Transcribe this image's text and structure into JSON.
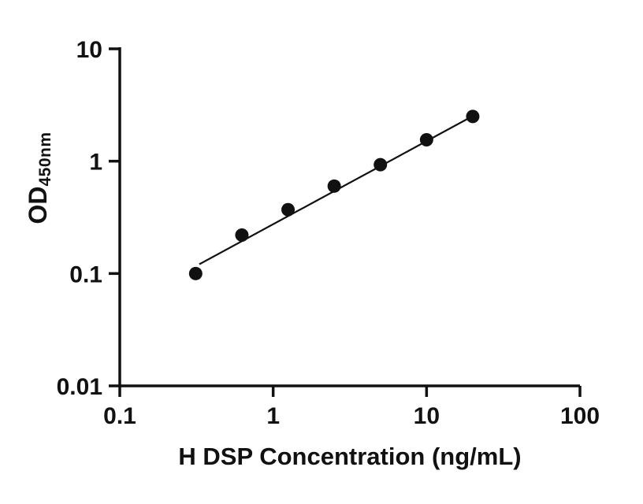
{
  "chart_data": {
    "type": "scatter",
    "title": "",
    "xlabel": "H DSP Concentration (ng/mL)",
    "ylabel_main": "OD",
    "ylabel_sub": "450nm",
    "xscale": "log",
    "yscale": "log",
    "xlim": [
      0.1,
      100
    ],
    "ylim": [
      0.01,
      10
    ],
    "x": [
      0.3125,
      0.625,
      1.25,
      2.5,
      5,
      10,
      20
    ],
    "y": [
      0.1,
      0.22,
      0.37,
      0.6,
      0.93,
      1.55,
      2.5
    ],
    "trendline": {
      "x": [
        0.33,
        20
      ],
      "y": [
        0.121,
        2.52
      ]
    },
    "x_ticks": [
      {
        "value": 0.1,
        "label": "0.1"
      },
      {
        "value": 1,
        "label": "1"
      },
      {
        "value": 10,
        "label": "10"
      },
      {
        "value": 100,
        "label": "100"
      }
    ],
    "y_ticks": [
      {
        "value": 0.01,
        "label": "0.01"
      },
      {
        "value": 0.1,
        "label": "0.1"
      },
      {
        "value": 1,
        "label": "1"
      },
      {
        "value": 10,
        "label": "10"
      }
    ],
    "grid": false,
    "legend": "none",
    "point_color": "#111111",
    "line_color": "#111111",
    "axis_color": "#111111"
  }
}
